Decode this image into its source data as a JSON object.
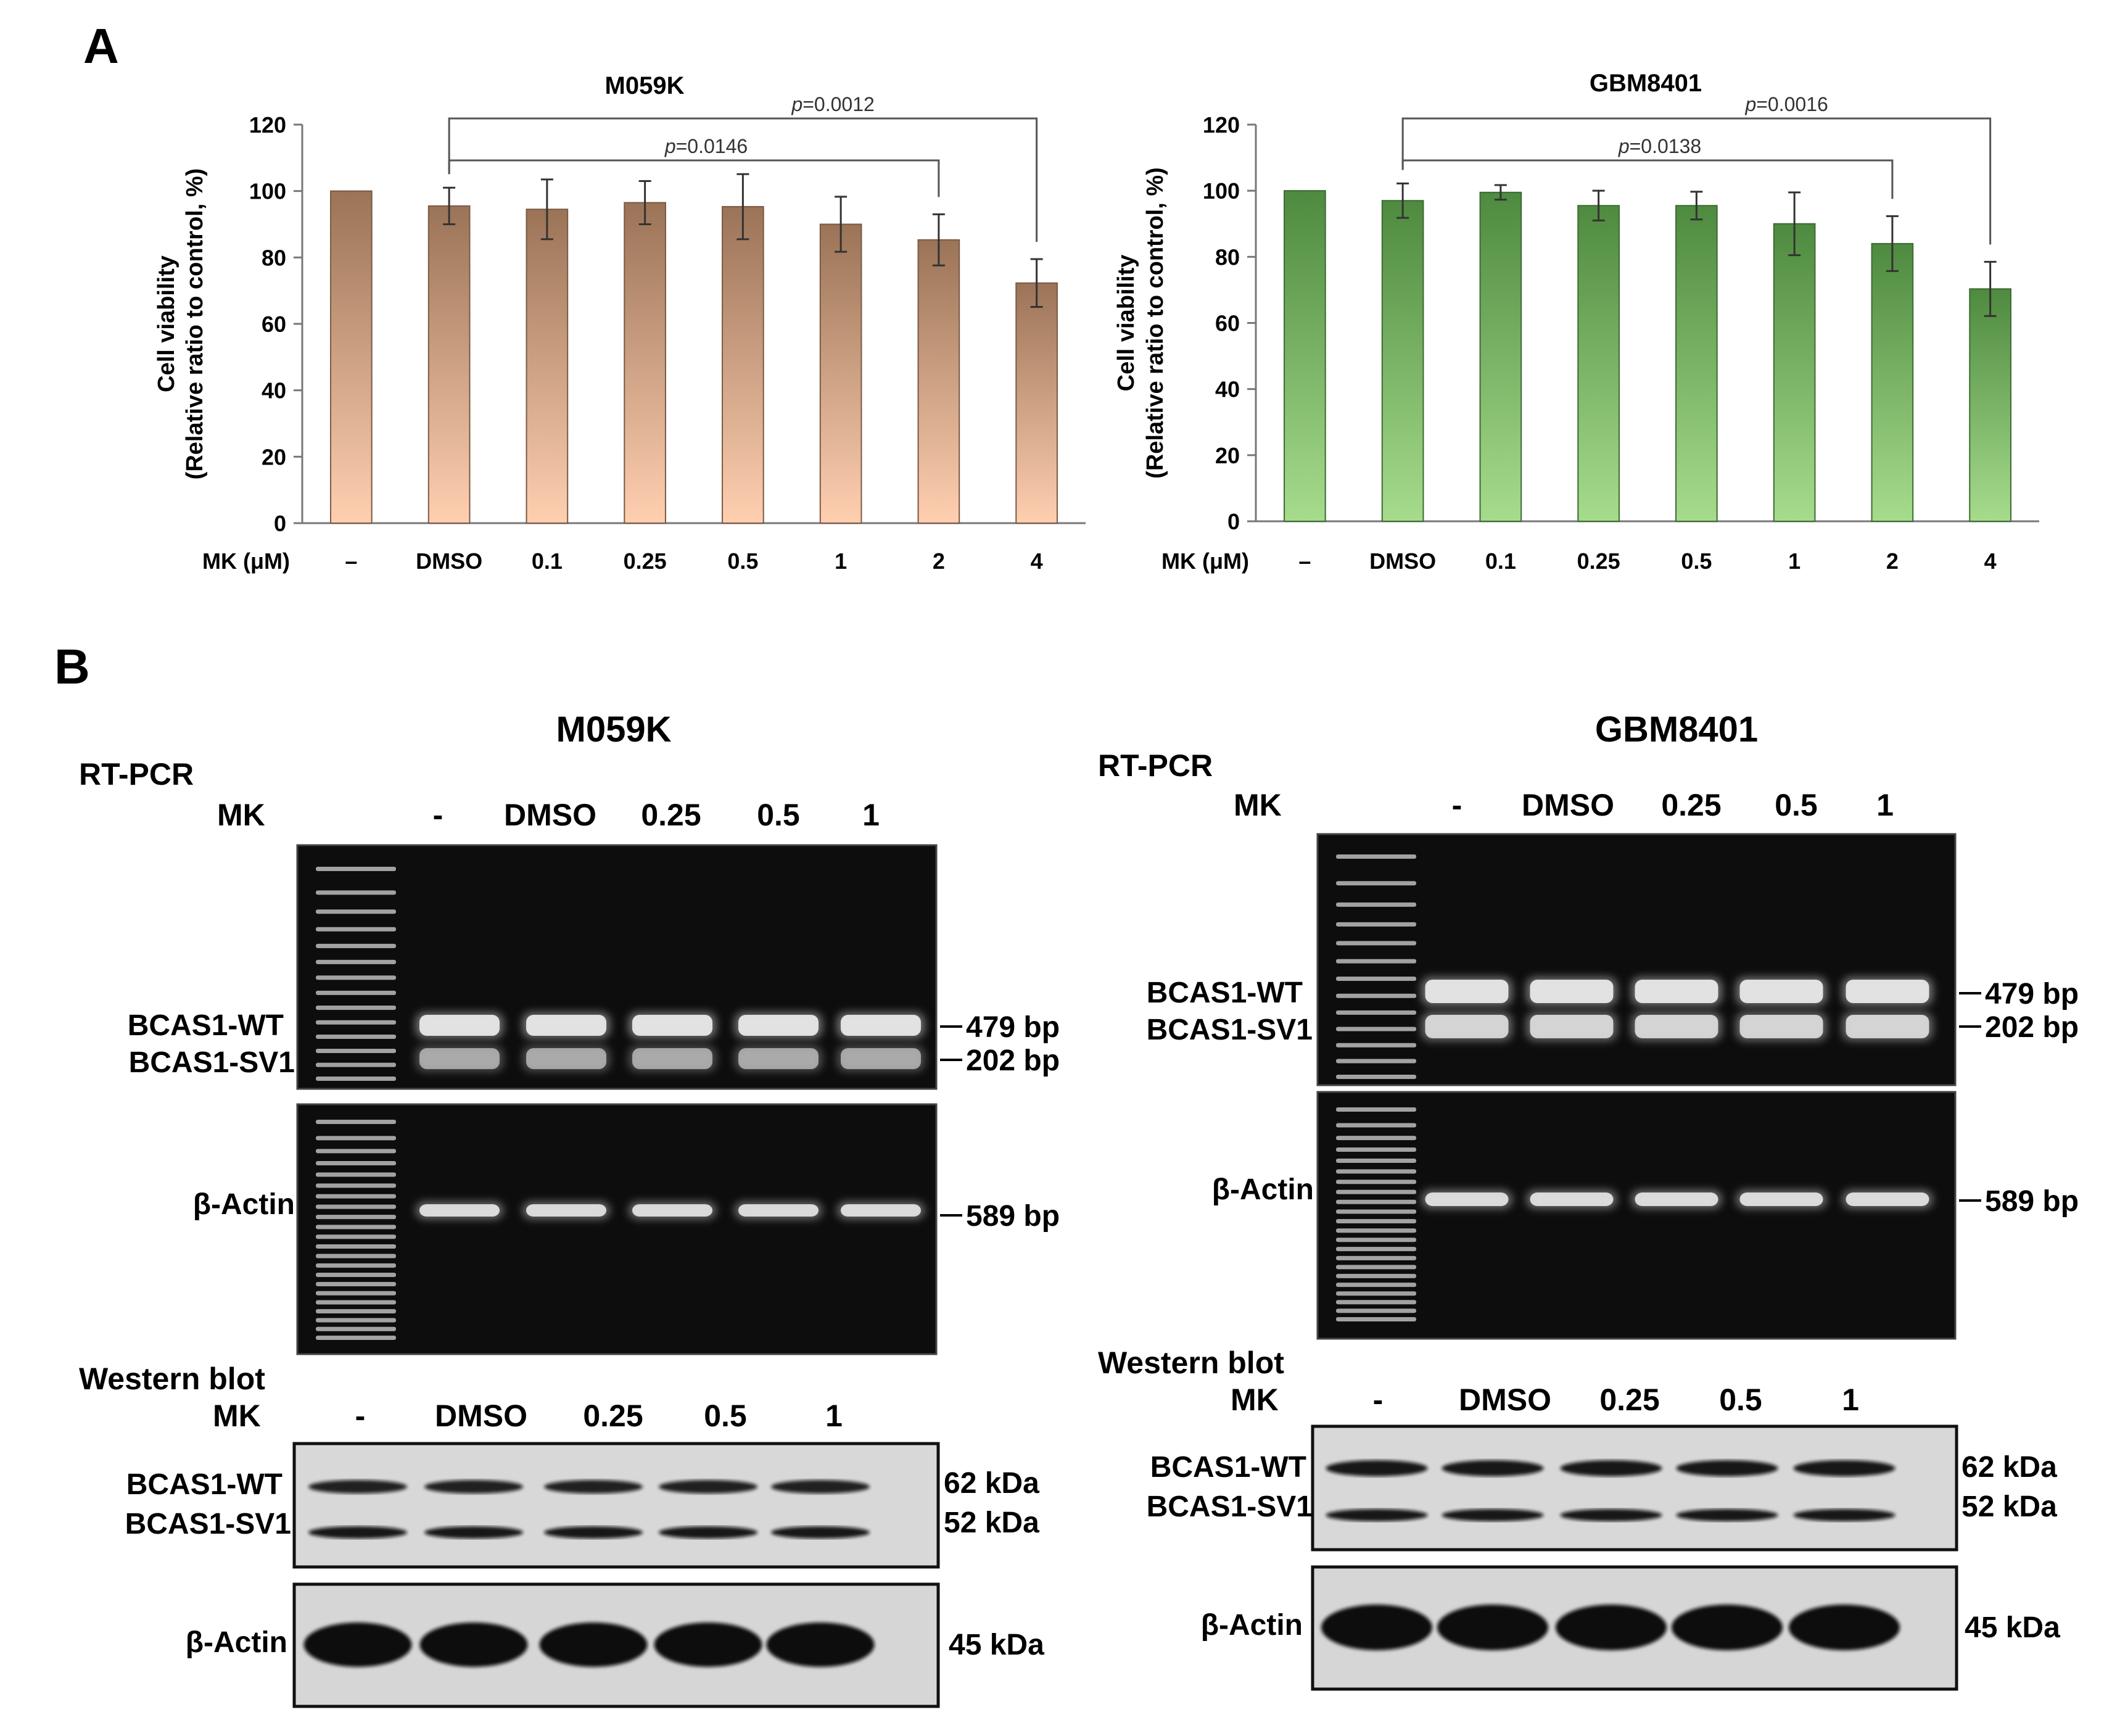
{
  "panel_a": {
    "label": "A",
    "x_axis_label": "MK (μM)",
    "y_axis_label_line1": "Cell viability",
    "y_axis_label_line2": "(Relative ratio to control, %)"
  },
  "chart_data": [
    {
      "type": "bar",
      "title": "M059K",
      "xlabel": "MK (μM)",
      "ylabel": "Cell viability (Relative ratio to control, %)",
      "categories": [
        "–",
        "DMSO",
        "0.1",
        "0.25",
        "0.5",
        "1",
        "2",
        "4"
      ],
      "values": [
        100,
        95.5,
        94.5,
        96.5,
        95.3,
        90,
        85.3,
        72.3
      ],
      "errors": [
        0,
        5.5,
        9,
        6.5,
        9.8,
        8.3,
        7.7,
        7.2
      ],
      "ylim": [
        0,
        120
      ],
      "yticks": [
        0,
        20,
        40,
        60,
        80,
        100,
        120
      ],
      "colors": {
        "top": "#9b7357",
        "bottom": "#ffcfb0",
        "edge": "#7a5a45"
      },
      "brackets": [
        {
          "from": "DMSO",
          "to": "4",
          "label_prefix": "p",
          "label_value": "=0.0012"
        },
        {
          "from": "DMSO",
          "to": "2",
          "label_prefix": "p",
          "label_value": "=0.0146"
        }
      ]
    },
    {
      "type": "bar",
      "title": "GBM8401",
      "xlabel": "MK (μM)",
      "ylabel": "Cell viability (Relative ratio to control, %)",
      "categories": [
        "–",
        "DMSO",
        "0.1",
        "0.25",
        "0.5",
        "1",
        "2",
        "4"
      ],
      "values": [
        100,
        97,
        99.5,
        95.5,
        95.5,
        90,
        84,
        70.3
      ],
      "errors": [
        0,
        5.2,
        2.2,
        4.5,
        4.2,
        9.5,
        8.3,
        8.2
      ],
      "ylim": [
        0,
        120
      ],
      "yticks": [
        0,
        20,
        40,
        60,
        80,
        100,
        120
      ],
      "colors": {
        "top": "#4e8a3f",
        "bottom": "#a6dc8c",
        "edge": "#3d6b32"
      },
      "brackets": [
        {
          "from": "DMSO",
          "to": "4",
          "label_prefix": "p",
          "label_value": "=0.0016"
        },
        {
          "from": "DMSO",
          "to": "2",
          "label_prefix": "p",
          "label_value": "=0.0138"
        }
      ]
    }
  ],
  "panel_b": {
    "label": "B",
    "left": {
      "title": "M059K",
      "rtpcr_label": "RT-PCR",
      "mk_label": "MK",
      "lanes": [
        "-",
        "DMSO",
        "0.25",
        "0.5",
        "1"
      ],
      "band_wt": "BCAS1-WT",
      "band_sv1": "BCAS1-SV1",
      "size_479": "479 bp",
      "size_202": "202 bp",
      "actin": "β-Actin",
      "size_589": "589 bp",
      "wb_label": "Western blot",
      "wb_mk_label": "MK",
      "wb_lanes": [
        "-",
        "DMSO",
        "0.25",
        "0.5",
        "1"
      ],
      "wb_wt": "BCAS1-WT",
      "wb_sv1": "BCAS1-SV1",
      "kda_62": "62 kDa",
      "kda_52": "52 kDa",
      "wb_actin": "β-Actin",
      "kda_45": "45 kDa"
    },
    "right": {
      "title": "GBM8401",
      "rtpcr_label": "RT-PCR",
      "mk_label": "MK",
      "lanes": [
        "-",
        "DMSO",
        "0.25",
        "0.5",
        "1"
      ],
      "band_wt": "BCAS1-WT",
      "band_sv1": "BCAS1-SV1",
      "size_479": "479 bp",
      "size_202": "202 bp",
      "actin": "β-Actin",
      "size_589": "589 bp",
      "wb_label": "Western blot",
      "wb_mk_label": "MK",
      "wb_lanes": [
        "-",
        "DMSO",
        "0.25",
        "0.5",
        "1"
      ],
      "wb_wt": "BCAS1-WT",
      "wb_sv1": "BCAS1-SV1",
      "kda_62": "62 kDa",
      "kda_52": "52 kDa",
      "wb_actin": "β-Actin",
      "kda_45": "45 kDa"
    }
  }
}
